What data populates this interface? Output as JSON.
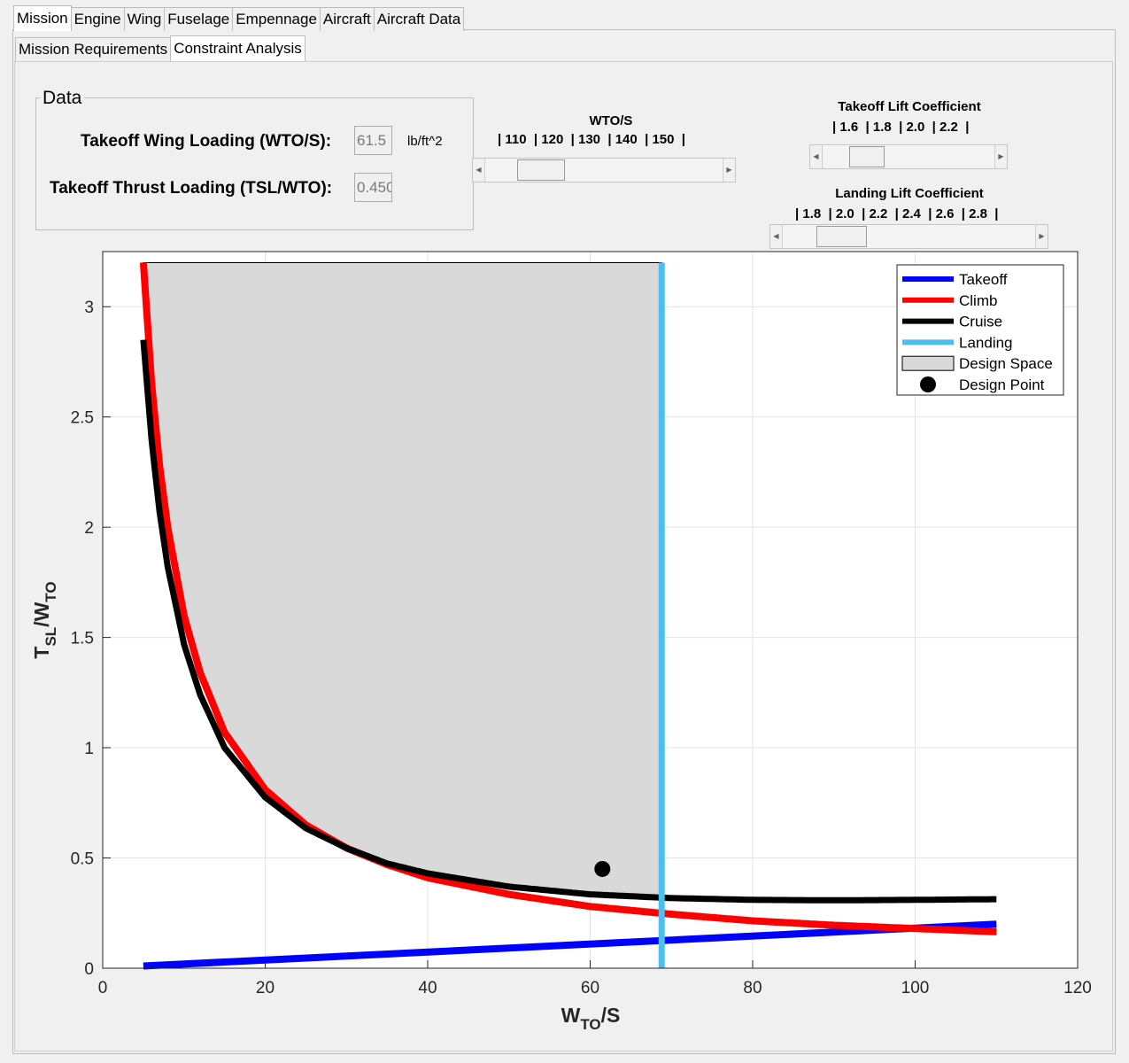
{
  "tabs": {
    "main": [
      "Mission",
      "Engine",
      "Wing",
      "Fuselage",
      "Empennage",
      "Aircraft",
      "Aircraft Data"
    ],
    "main_active": 0,
    "sub": [
      "Mission Requirements",
      "Constraint Analysis"
    ],
    "sub_active": 1
  },
  "data_panel": {
    "title": "Data",
    "wing_loading_label": "Takeoff Wing Loading (WTO/S):",
    "wing_loading_value": "61.5",
    "wing_loading_unit": "lb/ft^2",
    "thrust_loading_label": "Takeoff Thrust Loading (TSL/WTO):",
    "thrust_loading_value": "0.450"
  },
  "controls": {
    "wto_s": {
      "title": "WTO/S",
      "ticks": "| 110  | 120  | 130  | 140  | 150  |",
      "value_fraction": 0.17
    },
    "takeoff_cl": {
      "title": "Takeoff Lift Coefficient",
      "ticks": "| 1.6  | 1.8  | 2.0  | 2.2  |",
      "value_fraction": 0.2
    },
    "landing_cl": {
      "title": "Landing Lift Coefficient",
      "ticks": "| 1.8  | 2.0  | 2.2  | 2.4  | 2.6  | 2.8  |",
      "value_fraction": 0.17
    }
  },
  "chart_data": {
    "type": "line",
    "xlabel_main": "W",
    "xlabel_sub": "TO",
    "xlabel_tail": "/S",
    "ylabel_main": "T",
    "ylabel_sub1": "SL",
    "ylabel_mid": "/W",
    "ylabel_sub2": "TO",
    "xlim": [
      0,
      120
    ],
    "ylim": [
      0,
      3.25
    ],
    "x_ticks": [
      0,
      20,
      40,
      60,
      80,
      100,
      120
    ],
    "y_ticks": [
      0,
      0.5,
      1,
      1.5,
      2,
      2.5,
      3
    ],
    "y_tick_labels": [
      "0",
      "0.5",
      "1",
      "1.5",
      "2",
      "2.5",
      "3"
    ],
    "grid": true,
    "legend_position": "top-right",
    "series": [
      {
        "name": "Takeoff",
        "color": "#0000ff",
        "x": [
          5,
          110
        ],
        "y": [
          0.01,
          0.2
        ]
      },
      {
        "name": "Climb",
        "color": "#ff0000",
        "x": [
          5,
          6,
          7,
          8,
          10,
          12,
          15,
          20,
          25,
          30,
          35,
          40,
          50,
          60,
          70,
          80,
          90,
          100,
          110
        ],
        "y": [
          3.2,
          2.66,
          2.28,
          2.0,
          1.6,
          1.34,
          1.07,
          0.81,
          0.65,
          0.545,
          0.47,
          0.41,
          0.335,
          0.28,
          0.245,
          0.215,
          0.195,
          0.18,
          0.165
        ]
      },
      {
        "name": "Cruise",
        "color": "#000000",
        "x": [
          5,
          6,
          7,
          8,
          10,
          12,
          15,
          20,
          25,
          30,
          35,
          40,
          50,
          60,
          70,
          80,
          90,
          100,
          110
        ],
        "y": [
          2.85,
          2.4,
          2.07,
          1.82,
          1.47,
          1.24,
          1.0,
          0.775,
          0.635,
          0.545,
          0.475,
          0.43,
          0.37,
          0.335,
          0.318,
          0.31,
          0.308,
          0.31,
          0.313
        ]
      },
      {
        "name": "Landing",
        "color": "#4dbeee",
        "x": [
          68.8,
          68.8
        ],
        "y": [
          0,
          3.2
        ]
      }
    ],
    "design_space": {
      "name": "Design Space",
      "fill": "#d9d9d9",
      "x_min": 5,
      "x_max": 68.8,
      "y_top": 3.2
    },
    "design_point": {
      "name": "Design Point",
      "x": 61.5,
      "y": 0.45
    }
  }
}
